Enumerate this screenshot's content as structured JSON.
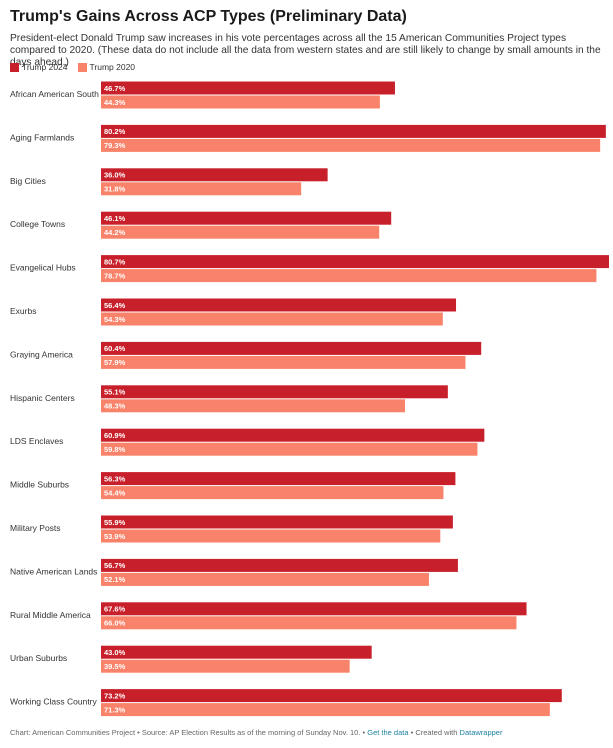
{
  "title": "Trump's Gains Across ACP Types (Preliminary Data)",
  "description": "President-elect Donald Trump saw increases in his vote percentages across all the 15 American Communities Project types compared to 2020. (These data do not include all the data from western states and are still likely to change by small amounts in the days ahead.)",
  "footer": {
    "source_text": "Chart: American Communities Project • Source: AP Election Results as of the morning of Sunday Nov. 10. •",
    "get_data": "Get the data",
    "sep": "• Created with",
    "created_with": "Datawrapper"
  },
  "colors": {
    "trump_2024": "#c8202a",
    "trump_2020": "#f9836a"
  },
  "chart_data": {
    "type": "bar",
    "orientation": "horizontal",
    "categories": [
      "African American South",
      "Aging Farmlands",
      "Big Cities",
      "College Towns",
      "Evangelical Hubs",
      "Exurbs",
      "Graying America",
      "Hispanic Centers",
      "LDS Enclaves",
      "Middle Suburbs",
      "Military Posts",
      "Native American Lands",
      "Rural Middle America",
      "Urban Suburbs",
      "Working Class Country"
    ],
    "series": [
      {
        "name": "Trump 2024",
        "color": "#c8202a",
        "values": [
          46.7,
          80.2,
          36.0,
          46.1,
          80.7,
          56.4,
          60.4,
          55.1,
          60.9,
          56.3,
          55.9,
          56.7,
          67.6,
          43.0,
          73.2
        ]
      },
      {
        "name": "Trump 2020",
        "color": "#f9836a",
        "values": [
          44.3,
          79.3,
          31.8,
          44.2,
          78.7,
          54.3,
          57.9,
          48.3,
          59.8,
          54.4,
          53.9,
          52.1,
          66.0,
          39.5,
          71.3
        ]
      }
    ],
    "xlim": [
      0,
      80.7
    ],
    "value_format": "percent_one_decimal",
    "legend_position": "top-left"
  }
}
